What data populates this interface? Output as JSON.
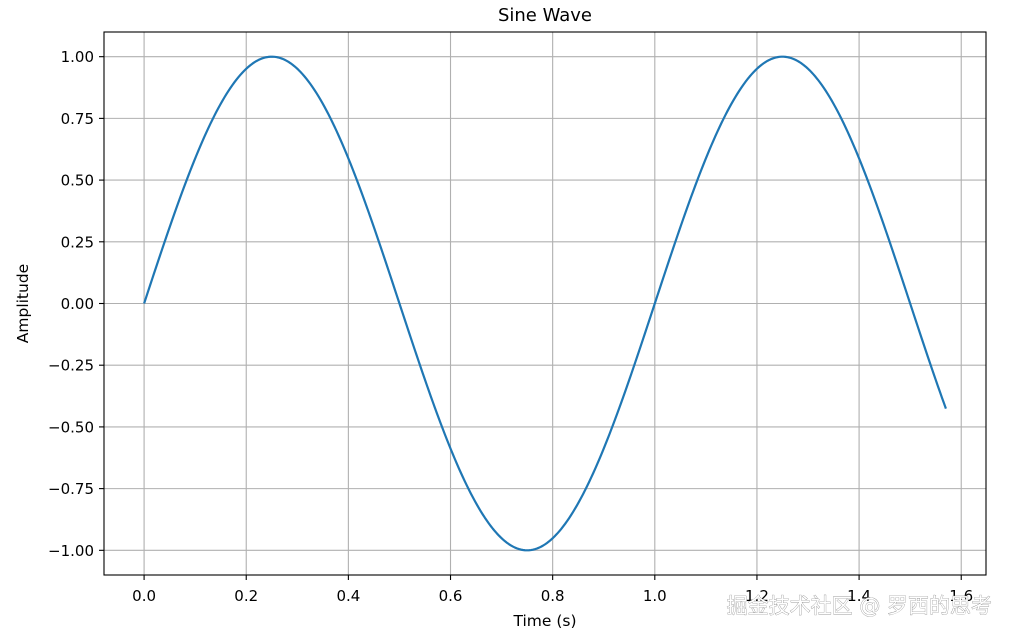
{
  "chart_data": {
    "type": "line",
    "title": "Sine Wave",
    "xlabel": "Time (s)",
    "ylabel": "Amplitude",
    "xlim": [
      -0.0785,
      1.6485
    ],
    "ylim": [
      -1.1,
      1.1
    ],
    "x_ticks": [
      0.0,
      0.2,
      0.4,
      0.6,
      0.8,
      1.0,
      1.2,
      1.4,
      1.6
    ],
    "x_tick_labels": [
      "0.0",
      "0.2",
      "0.4",
      "0.6",
      "0.8",
      "1.0",
      "1.2",
      "1.4",
      "1.6"
    ],
    "y_ticks": [
      1.0,
      0.75,
      0.5,
      0.25,
      0.0,
      -0.25,
      -0.5,
      -0.75,
      -1.0
    ],
    "y_tick_labels": [
      "1.00",
      "0.75",
      "0.50",
      "0.25",
      "0.00",
      "−0.25",
      "−0.50",
      "−0.75",
      "−1.00"
    ],
    "grid": true,
    "legend": "none",
    "series": [
      {
        "color": "#1f77b4",
        "function": "sin(2*pi*t)",
        "x": [
          0.0,
          0.05,
          0.1,
          0.15,
          0.2,
          0.25,
          0.3,
          0.35,
          0.4,
          0.45,
          0.5,
          0.55,
          0.6,
          0.65,
          0.7,
          0.75,
          0.8,
          0.85,
          0.9,
          0.95,
          1.0,
          1.05,
          1.1,
          1.15,
          1.2,
          1.25,
          1.3,
          1.35,
          1.4,
          1.45,
          1.5,
          1.55,
          1.57
        ],
        "y": [
          0.0,
          0.309,
          0.588,
          0.809,
          0.951,
          1.0,
          0.951,
          0.809,
          0.588,
          0.309,
          0.0,
          -0.309,
          -0.588,
          -0.809,
          -0.951,
          -1.0,
          -0.951,
          -0.809,
          -0.588,
          -0.309,
          0.0,
          0.309,
          0.588,
          0.809,
          0.951,
          1.0,
          0.951,
          0.809,
          0.588,
          0.309,
          0.0,
          -0.309,
          -0.43
        ]
      }
    ]
  },
  "colors": {
    "grid": "#b0b0b0",
    "axes": "#000000",
    "background": "#ffffff"
  },
  "watermark": "掘金技术社区 @ 罗西的思考"
}
